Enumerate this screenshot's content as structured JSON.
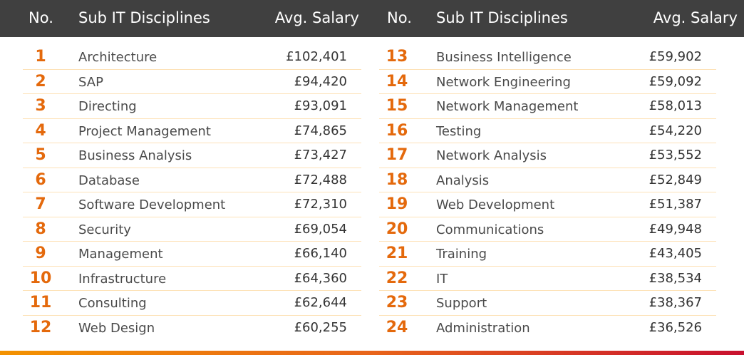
{
  "header": {
    "no": "No.",
    "discipline": "Sub IT Disciplines",
    "salary": "Avg. Salary"
  },
  "colors": {
    "header_bg": "#404040",
    "rank": "#e4690c",
    "divider": "#fde2b8"
  },
  "rows": [
    {
      "no": "1",
      "name": "Architecture",
      "salary": "£102,401"
    },
    {
      "no": "2",
      "name": "SAP",
      "salary": "£94,420"
    },
    {
      "no": "3",
      "name": "Directing",
      "salary": "£93,091"
    },
    {
      "no": "4",
      "name": "Project Management",
      "salary": "£74,865"
    },
    {
      "no": "5",
      "name": "Business Analysis",
      "salary": "£73,427"
    },
    {
      "no": "6",
      "name": "Database",
      "salary": "£72,488"
    },
    {
      "no": "7",
      "name": "Software Development",
      "salary": "£72,310"
    },
    {
      "no": "8",
      "name": "Security",
      "salary": "£69,054"
    },
    {
      "no": "9",
      "name": "Management",
      "salary": "£66,140"
    },
    {
      "no": "10",
      "name": "Infrastructure",
      "salary": "£64,360"
    },
    {
      "no": "11",
      "name": "Consulting",
      "salary": "£62,644"
    },
    {
      "no": "12",
      "name": "Web Design",
      "salary": "£60,255"
    },
    {
      "no": "13",
      "name": "Business Intelligence",
      "salary": "£59,902"
    },
    {
      "no": "14",
      "name": "Network Engineering",
      "salary": "£59,092"
    },
    {
      "no": "15",
      "name": "Network Management",
      "salary": "£58,013"
    },
    {
      "no": "16",
      "name": "Testing",
      "salary": "£54,220"
    },
    {
      "no": "17",
      "name": "Network Analysis",
      "salary": "£53,552"
    },
    {
      "no": "18",
      "name": "Analysis",
      "salary": "£52,849"
    },
    {
      "no": "19",
      "name": "Web Development",
      "salary": "£51,387"
    },
    {
      "no": "20",
      "name": "Communications",
      "salary": "£49,948"
    },
    {
      "no": "21",
      "name": "Training",
      "salary": "£43,405"
    },
    {
      "no": "22",
      "name": "IT",
      "salary": "£38,534"
    },
    {
      "no": "23",
      "name": "Support",
      "salary": "£38,367"
    },
    {
      "no": "24",
      "name": "Administration",
      "salary": "£36,526"
    }
  ]
}
